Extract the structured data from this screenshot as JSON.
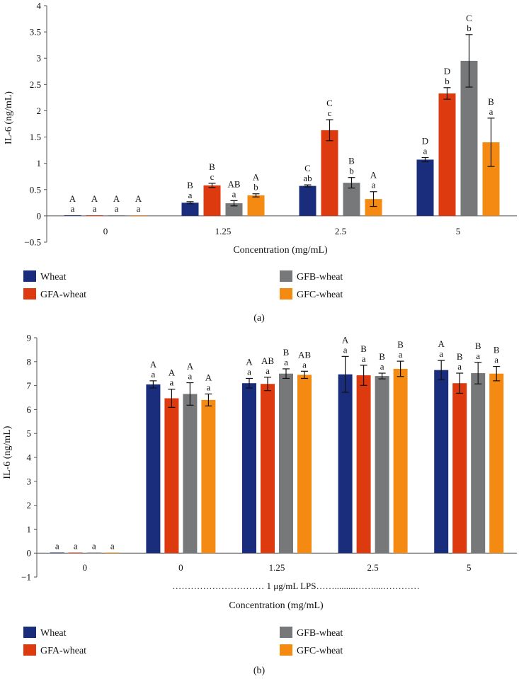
{
  "colors": {
    "wheat": "#1a2d7c",
    "gfa": "#dd3a10",
    "gfb": "#777879",
    "gfc": "#f58a12",
    "axis": "#555555",
    "error": "#111111"
  },
  "legend": [
    {
      "key": "wheat",
      "label": "Wheat",
      "color": "#1a2d7c"
    },
    {
      "key": "gfa",
      "label": "GFA-wheat",
      "color": "#dd3a10"
    },
    {
      "key": "gfb",
      "label": "GFB-wheat",
      "color": "#777879"
    },
    {
      "key": "gfc",
      "label": "GFC-wheat",
      "color": "#f58a12"
    }
  ],
  "panels": {
    "a": {
      "caption": "(a)"
    },
    "b": {
      "caption": "(b)",
      "lps_note": "………………………… 1 μg/mL LPS…….........……....…………"
    }
  },
  "chart_data": [
    {
      "type": "bar",
      "panel": "a",
      "title": "",
      "xlabel": "Concentration (mg/mL)",
      "ylabel": "IL-6 (ng/mL)",
      "ylim": [
        -0.5,
        4
      ],
      "yticks": [
        -0.5,
        0,
        0.5,
        1,
        1.5,
        2,
        2.5,
        3,
        3.5,
        4
      ],
      "ytick_labels": [
        "−0.5",
        "0",
        "0.5",
        "1",
        "1.5",
        "2",
        "2.5",
        "3",
        "3.5",
        "4"
      ],
      "categories": [
        "0",
        "1.25",
        "2.5",
        "5"
      ],
      "series": [
        {
          "name": "Wheat",
          "color": "#1a2d7c",
          "values": [
            0.01,
            0.25,
            0.57,
            1.07
          ],
          "errors": [
            0.0,
            0.02,
            0.02,
            0.04
          ],
          "letters": [
            [
              "A",
              "a"
            ],
            [
              "B",
              "a"
            ],
            [
              "C",
              "ab"
            ],
            [
              "D",
              "a"
            ]
          ]
        },
        {
          "name": "GFA-wheat",
          "color": "#dd3a10",
          "values": [
            0.01,
            0.58,
            1.63,
            2.33
          ],
          "errors": [
            0.0,
            0.04,
            0.2,
            0.11
          ],
          "letters": [
            [
              "A",
              "a"
            ],
            [
              "B",
              "c"
            ],
            [
              "C",
              "c"
            ],
            [
              "D",
              "b"
            ]
          ]
        },
        {
          "name": "GFB-wheat",
          "color": "#777879",
          "values": [
            0.01,
            0.24,
            0.63,
            2.95
          ],
          "errors": [
            0.0,
            0.05,
            0.1,
            0.5
          ],
          "letters": [
            [
              "A",
              "a"
            ],
            [
              "AB",
              "a"
            ],
            [
              "B",
              "b"
            ],
            [
              "C",
              "b"
            ]
          ]
        },
        {
          "name": "GFC-wheat",
          "color": "#f58a12",
          "values": [
            0.01,
            0.39,
            0.32,
            1.4
          ],
          "errors": [
            0.0,
            0.03,
            0.14,
            0.46
          ],
          "letters": [
            [
              "A",
              "a"
            ],
            [
              "A",
              "b"
            ],
            [
              "A",
              "a"
            ],
            [
              "B",
              "a"
            ]
          ]
        }
      ]
    },
    {
      "type": "bar",
      "panel": "b",
      "title": "",
      "xlabel": "Concentration (mg/mL)",
      "ylabel": "IL-6 (ng/mL)",
      "ylim": [
        -1,
        9
      ],
      "yticks": [
        -1,
        0,
        1,
        2,
        3,
        4,
        5,
        6,
        7,
        8,
        9
      ],
      "ytick_labels": [
        "−1",
        "0",
        "1",
        "2",
        "3",
        "4",
        "5",
        "6",
        "7",
        "8",
        "9"
      ],
      "categories": [
        "0",
        "0",
        "1.25",
        "2.5",
        "5"
      ],
      "series": [
        {
          "name": "Wheat",
          "color": "#1a2d7c",
          "values": [
            0.02,
            7.05,
            7.1,
            7.47,
            7.65
          ],
          "errors": [
            0.0,
            0.15,
            0.2,
            0.75,
            0.4
          ],
          "letters": [
            [
              "",
              "a"
            ],
            [
              "A",
              "a"
            ],
            [
              "A",
              "a"
            ],
            [
              "A",
              "a"
            ],
            [
              "A",
              "a"
            ]
          ]
        },
        {
          "name": "GFA-wheat",
          "color": "#dd3a10",
          "values": [
            0.02,
            6.47,
            7.07,
            7.43,
            7.1
          ],
          "errors": [
            0.0,
            0.38,
            0.28,
            0.42,
            0.42
          ],
          "letters": [
            [
              "",
              "a"
            ],
            [
              "A",
              "a"
            ],
            [
              "AB",
              "a"
            ],
            [
              "B",
              "a"
            ],
            [
              "B",
              "a"
            ]
          ]
        },
        {
          "name": "GFB-wheat",
          "color": "#777879",
          "values": [
            0.02,
            6.65,
            7.5,
            7.4,
            7.52
          ],
          "errors": [
            0.0,
            0.47,
            0.2,
            0.12,
            0.45
          ],
          "letters": [
            [
              "",
              "a"
            ],
            [
              "A",
              "a"
            ],
            [
              "B",
              "a"
            ],
            [
              "B",
              "a"
            ],
            [
              "B",
              "a"
            ]
          ]
        },
        {
          "name": "GFC-wheat",
          "color": "#f58a12",
          "values": [
            0.02,
            6.4,
            7.45,
            7.7,
            7.5
          ],
          "errors": [
            0.0,
            0.25,
            0.15,
            0.32,
            0.3
          ],
          "letters": [
            [
              "",
              "a"
            ],
            [
              "A",
              "a"
            ],
            [
              "AB",
              "a"
            ],
            [
              "B",
              "a"
            ],
            [
              "B",
              "a"
            ]
          ]
        }
      ]
    }
  ]
}
